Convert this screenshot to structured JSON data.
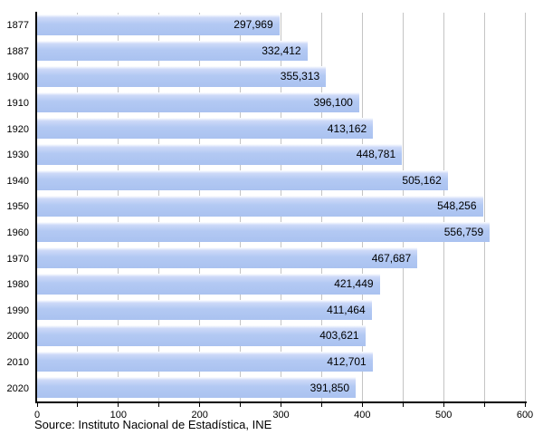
{
  "chart_data": {
    "type": "bar",
    "orientation": "horizontal",
    "title": "",
    "xlabel": "",
    "ylabel": "",
    "categories": [
      "1877",
      "1887",
      "1900",
      "1910",
      "1920",
      "1930",
      "1940",
      "1950",
      "1960",
      "1970",
      "1980",
      "1990",
      "2000",
      "2010",
      "2020"
    ],
    "values": [
      297969,
      332412,
      355313,
      396100,
      413162,
      448781,
      505162,
      548256,
      556759,
      467687,
      421449,
      411464,
      403621,
      412701,
      391850
    ],
    "value_labels": [
      "297,969",
      "332,412",
      "355,313",
      "396,100",
      "413,162",
      "448,781",
      "505,162",
      "548,256",
      "556,759",
      "467,687",
      "421,449",
      "411,464",
      "403,621",
      "412,701",
      "391,850"
    ],
    "x_axis": {
      "min": 0,
      "max": 600,
      "unit": "thousands",
      "major_ticks": [
        0,
        100,
        200,
        300,
        400,
        500,
        600
      ],
      "minor_tick_interval": 50
    },
    "grid": true,
    "legend": false,
    "source": "Source: Instituto Nacional de Estadística, INE",
    "colors": {
      "bar": "#aac2f0",
      "bar_mid": "#b3c9f3",
      "bar_light": "#cdd9f8",
      "bar_top": "#ffffff",
      "grid": "#c4c4c4",
      "axis": "#000000",
      "text": "#000000",
      "background": "#ffffff"
    }
  }
}
